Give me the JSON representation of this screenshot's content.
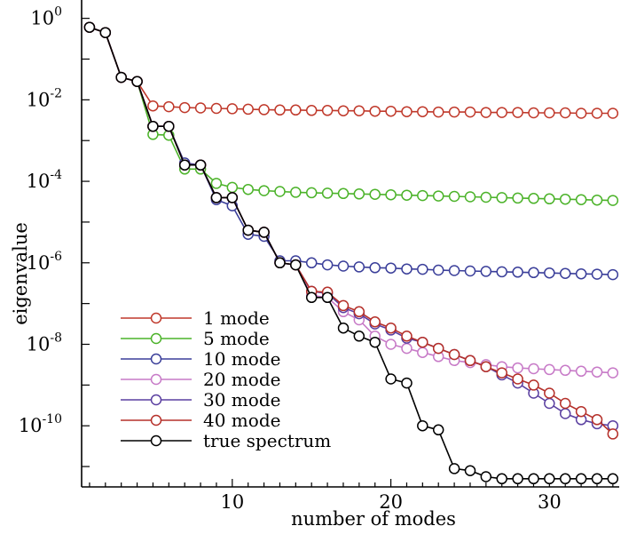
{
  "chart_data": {
    "type": "line",
    "title": "",
    "xlabel": "number of modes",
    "ylabel": "eigenvalue",
    "yscale": "log",
    "xlim": [
      0.5,
      34.4
    ],
    "ylim_log10": [
      -11.5,
      0.45
    ],
    "xticks": [
      10,
      20,
      30
    ],
    "yticks": [
      {
        "exp": 0,
        "base": "10",
        "sup": "0"
      },
      {
        "exp": -2,
        "base": "10",
        "sup": "-2"
      },
      {
        "exp": -4,
        "base": "10",
        "sup": "-4"
      },
      {
        "exp": -6,
        "base": "10",
        "sup": "-6"
      },
      {
        "exp": -8,
        "base": "10",
        "sup": "-8"
      },
      {
        "exp": -10,
        "base": "10",
        "sup": "-10"
      }
    ],
    "legend_position": "bottom-left",
    "x": [
      1,
      2,
      3,
      4,
      5,
      6,
      7,
      8,
      9,
      10,
      11,
      12,
      13,
      14,
      15,
      16,
      17,
      18,
      19,
      20,
      21,
      22,
      23,
      24,
      25,
      26,
      27,
      28,
      29,
      30,
      31,
      32,
      33,
      34
    ],
    "series": [
      {
        "name": "1 mode",
        "color": "#c0392b",
        "log10_values": [
          -0.22,
          -0.35,
          -1.45,
          -1.55,
          -2.15,
          -2.17,
          -2.19,
          -2.2,
          -2.21,
          -2.22,
          -2.23,
          -2.24,
          -2.25,
          -2.25,
          -2.26,
          -2.26,
          -2.27,
          -2.27,
          -2.28,
          -2.28,
          -2.29,
          -2.29,
          -2.3,
          -2.3,
          -2.3,
          -2.31,
          -2.31,
          -2.31,
          -2.32,
          -2.32,
          -2.32,
          -2.33,
          -2.33,
          -2.33
        ]
      },
      {
        "name": "5 mode",
        "color": "#4cb32a",
        "log10_values": [
          -0.22,
          -0.35,
          -1.45,
          -1.55,
          -2.85,
          -2.87,
          -3.7,
          -3.7,
          -4.05,
          -4.15,
          -4.2,
          -4.23,
          -4.25,
          -4.27,
          -4.28,
          -4.29,
          -4.3,
          -4.31,
          -4.32,
          -4.33,
          -4.34,
          -4.35,
          -4.36,
          -4.37,
          -4.38,
          -4.39,
          -4.4,
          -4.41,
          -4.42,
          -4.43,
          -4.44,
          -4.45,
          -4.46,
          -4.47
        ]
      },
      {
        "name": "10 mode",
        "color": "#3b3f9a",
        "log10_values": [
          -0.22,
          -0.35,
          -1.45,
          -1.55,
          -2.65,
          -2.65,
          -3.55,
          -3.6,
          -4.45,
          -4.6,
          -5.3,
          -5.35,
          -5.95,
          -5.95,
          -6.0,
          -6.05,
          -6.08,
          -6.1,
          -6.12,
          -6.13,
          -6.15,
          -6.16,
          -6.18,
          -6.19,
          -6.2,
          -6.21,
          -6.22,
          -6.23,
          -6.24,
          -6.25,
          -6.26,
          -6.27,
          -6.28,
          -6.29
        ]
      },
      {
        "name": "20 mode",
        "color": "#c77ac7",
        "log10_values": [
          -0.22,
          -0.35,
          -1.45,
          -1.55,
          -2.65,
          -2.65,
          -3.6,
          -3.6,
          -4.4,
          -4.4,
          -5.2,
          -5.25,
          -6.0,
          -6.05,
          -6.8,
          -6.85,
          -7.2,
          -7.4,
          -7.8,
          -8.0,
          -8.1,
          -8.2,
          -8.3,
          -8.4,
          -8.45,
          -8.5,
          -8.55,
          -8.58,
          -8.6,
          -8.62,
          -8.64,
          -8.66,
          -8.68,
          -8.7
        ]
      },
      {
        "name": "30 mode",
        "color": "#5a3fa0",
        "log10_values": [
          -0.22,
          -0.35,
          -1.45,
          -1.55,
          -2.65,
          -2.65,
          -3.6,
          -3.6,
          -4.4,
          -4.4,
          -5.2,
          -5.25,
          -6.0,
          -6.05,
          -6.7,
          -6.75,
          -7.1,
          -7.25,
          -7.5,
          -7.65,
          -7.85,
          -7.95,
          -8.1,
          -8.25,
          -8.4,
          -8.55,
          -8.75,
          -8.95,
          -9.2,
          -9.45,
          -9.7,
          -9.85,
          -9.95,
          -10.0
        ]
      },
      {
        "name": "40 mode",
        "color": "#b5302a",
        "log10_values": [
          -0.22,
          -0.35,
          -1.45,
          -1.55,
          -2.65,
          -2.65,
          -3.6,
          -3.6,
          -4.4,
          -4.4,
          -5.2,
          -5.25,
          -6.0,
          -6.05,
          -6.7,
          -6.72,
          -7.05,
          -7.2,
          -7.45,
          -7.6,
          -7.8,
          -7.95,
          -8.1,
          -8.25,
          -8.4,
          -8.55,
          -8.7,
          -8.85,
          -9.0,
          -9.2,
          -9.45,
          -9.65,
          -9.85,
          -10.2
        ]
      },
      {
        "name": "true spectrum",
        "color": "#000000",
        "log10_values": [
          -0.22,
          -0.35,
          -1.45,
          -1.55,
          -2.65,
          -2.65,
          -3.6,
          -3.6,
          -4.4,
          -4.4,
          -5.2,
          -5.25,
          -6.0,
          -6.05,
          -6.85,
          -6.85,
          -7.6,
          -7.8,
          -7.95,
          -8.85,
          -8.95,
          -10.0,
          -10.1,
          -11.05,
          -11.1,
          -11.25,
          -11.3,
          -11.3,
          -11.3,
          -11.3,
          -11.3,
          -11.3,
          -11.3,
          -11.3
        ]
      }
    ]
  }
}
